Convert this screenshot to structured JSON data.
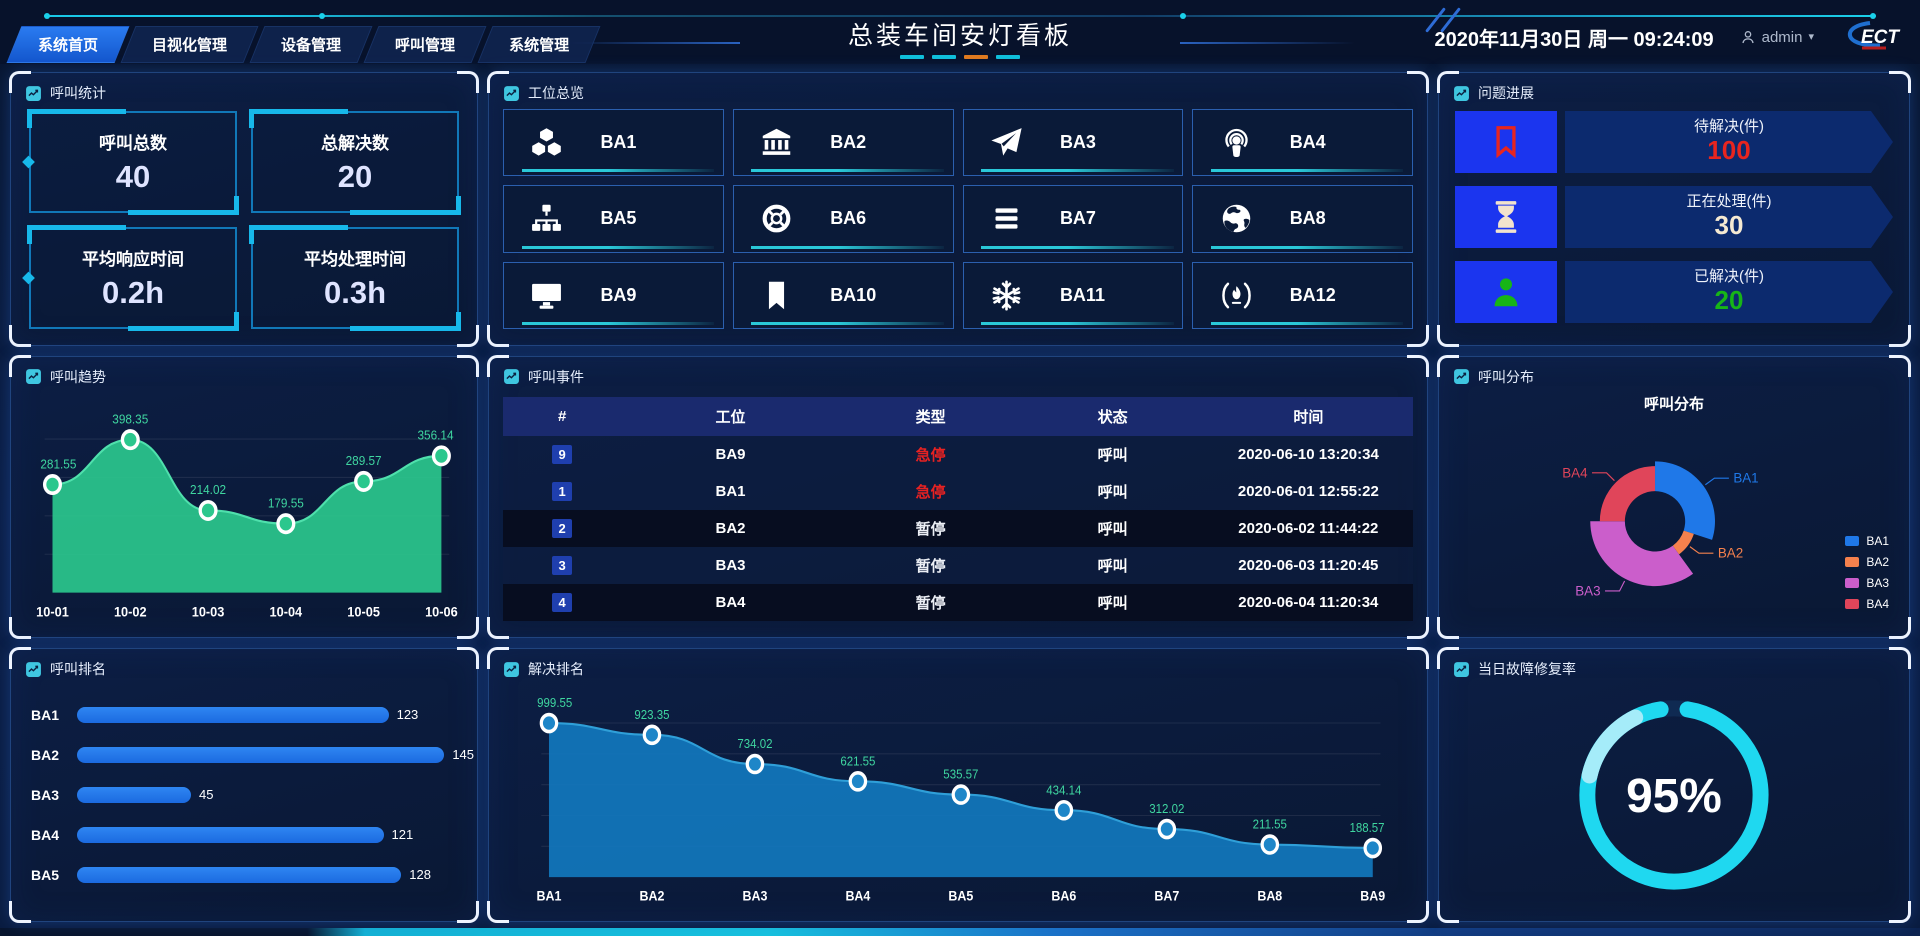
{
  "header": {
    "nav": [
      {
        "label": "系统首页",
        "active": true
      },
      {
        "label": "目视化管理",
        "active": false
      },
      {
        "label": "设备管理",
        "active": false
      },
      {
        "label": "呼叫管理",
        "active": false
      },
      {
        "label": "系统管理",
        "active": false
      }
    ],
    "title": "总装车间安灯看板",
    "datetime": "2020年11月30日 周一 09:24:09",
    "user": "admin",
    "logo": "ECT"
  },
  "panels": {
    "call_stats": {
      "title": "呼叫统计",
      "stats": [
        {
          "label": "呼叫总数",
          "value": "40"
        },
        {
          "label": "总解决数",
          "value": "20"
        },
        {
          "label": "平均响应时间",
          "value": "0.2h"
        },
        {
          "label": "平均处理时间",
          "value": "0.3h"
        }
      ]
    },
    "station_overview": {
      "title": "工位总览",
      "stations": [
        {
          "label": "BA1",
          "icon": "cubes-icon"
        },
        {
          "label": "BA2",
          "icon": "bank-icon"
        },
        {
          "label": "BA3",
          "icon": "paper-plane-icon"
        },
        {
          "label": "BA4",
          "icon": "podcast-icon"
        },
        {
          "label": "BA5",
          "icon": "sitemap-icon"
        },
        {
          "label": "BA6",
          "icon": "life-ring-icon"
        },
        {
          "label": "BA7",
          "icon": "bars-icon"
        },
        {
          "label": "BA8",
          "icon": "globe-icon"
        },
        {
          "label": "BA9",
          "icon": "desktop-icon"
        },
        {
          "label": "BA10",
          "icon": "bookmark-icon"
        },
        {
          "label": "BA11",
          "icon": "snowflake-icon"
        },
        {
          "label": "BA12",
          "icon": "fire-icon"
        }
      ]
    },
    "issue_progress": {
      "title": "问题进展",
      "items": [
        {
          "label": "待解决(件)",
          "value": "100",
          "color": "#e8251f",
          "icon": "bookmark-outline-icon"
        },
        {
          "label": "正在处理(件)",
          "value": "30",
          "color": "#f5e9d2",
          "icon": "hourglass-icon"
        },
        {
          "label": "已解决(件)",
          "value": "20",
          "color": "#17b517",
          "icon": "person-icon"
        }
      ]
    },
    "call_trend": {
      "title": "呼叫趋势",
      "chart": {
        "type": "area",
        "x": [
          "10-01",
          "10-02",
          "10-03",
          "10-04",
          "10-05",
          "10-06"
        ],
        "values": [
          281.55,
          398.35,
          214.02,
          179.55,
          289.57,
          356.14
        ],
        "ylim": [
          0,
          440
        ],
        "area_color": "#2bc78d",
        "line_color": "#4fe0ac",
        "label_color": "#3fd6a0"
      }
    },
    "call_events": {
      "title": "呼叫事件",
      "columns": [
        "#",
        "工位",
        "类型",
        "状态",
        "时间"
      ],
      "rows": [
        {
          "id": "9",
          "station": "BA9",
          "type": "急停",
          "status": "呼叫",
          "time": "2020-06-10 13:20:34"
        },
        {
          "id": "1",
          "station": "BA1",
          "type": "急停",
          "status": "呼叫",
          "time": "2020-06-01 12:55:22"
        },
        {
          "id": "2",
          "station": "BA2",
          "type": "暂停",
          "status": "呼叫",
          "time": "2020-06-02 11:44:22"
        },
        {
          "id": "3",
          "station": "BA3",
          "type": "暂停",
          "status": "呼叫",
          "time": "2020-06-03 11:20:45"
        },
        {
          "id": "4",
          "station": "BA4",
          "type": "暂停",
          "status": "呼叫",
          "time": "2020-06-04 11:20:34"
        }
      ],
      "type_colors": {
        "急停": "#e82222",
        "暂停": "#eceff5"
      }
    },
    "call_distribution": {
      "title": "呼叫分布",
      "chart_title": "呼叫分布",
      "chart": {
        "type": "pie",
        "series": [
          {
            "name": "BA1",
            "value": 30,
            "color": "#1f78e8"
          },
          {
            "name": "BA2",
            "value": 10,
            "color": "#f5814d"
          },
          {
            "name": "BA3",
            "value": 35,
            "color": "#cb5ecb"
          },
          {
            "name": "BA4",
            "value": 25,
            "color": "#e0455a"
          }
        ]
      }
    },
    "call_ranking": {
      "title": "呼叫排名",
      "chart": {
        "type": "bar",
        "categories": [
          "BA1",
          "BA2",
          "BA3",
          "BA4",
          "BA5"
        ],
        "values": [
          123,
          145,
          45,
          121,
          128
        ],
        "xmax": 150,
        "bar_color": "#1b72e8"
      }
    },
    "resolve_ranking": {
      "title": "解决排名",
      "chart": {
        "type": "area",
        "x": [
          "BA1",
          "BA2",
          "BA3",
          "BA4",
          "BA5",
          "BA6",
          "BA7",
          "BA8",
          "BA9"
        ],
        "values": [
          999.55,
          923.35,
          734.02,
          621.55,
          535.57,
          434.14,
          312.02,
          211.55,
          188.57
        ],
        "ylim": [
          0,
          1080
        ],
        "area_color": "#1277bd",
        "line_color": "#2f9fd8",
        "marker_color": "#1e86c8",
        "label_color": "#3fd6a0"
      }
    },
    "repair_rate": {
      "title": "当日故障修复率",
      "value": "95%",
      "percent": 95,
      "ring_color": "#1fd8f0"
    }
  }
}
